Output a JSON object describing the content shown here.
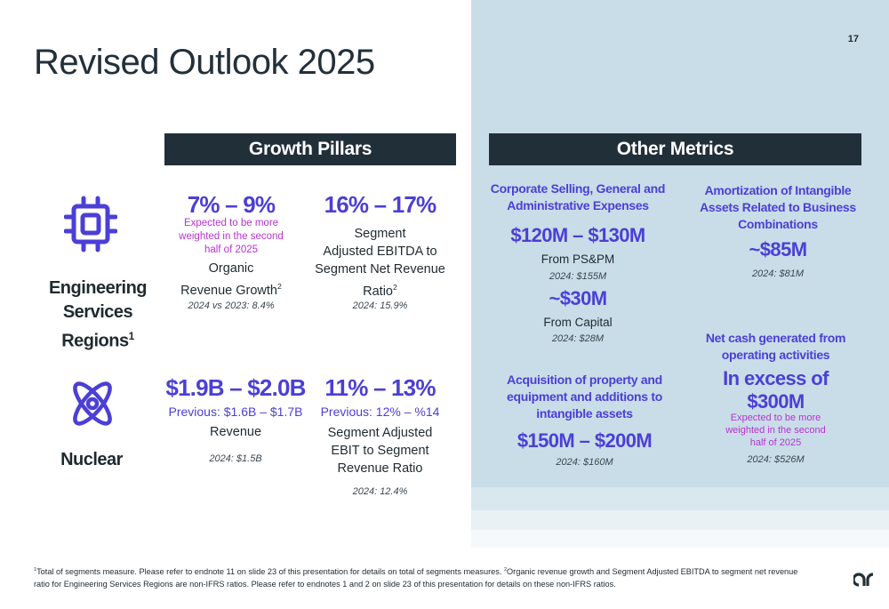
{
  "page_number": "17",
  "title": "Revised Outlook 2025",
  "headers": {
    "left": "Growth Pillars",
    "right": "Other Metrics"
  },
  "rows": {
    "engineering": {
      "label_line1": "Engineering",
      "label_line2": "Services Regions",
      "label_sup": "1",
      "icon": "chip-icon"
    },
    "nuclear": {
      "label": "Nuclear",
      "icon": "atom-icon"
    }
  },
  "growth": {
    "organic": {
      "value": "7% – 9%",
      "note_line1": "Expected to be more",
      "note_line2": "weighted in the second",
      "note_line3": "half of 2025",
      "label_line1": "Organic",
      "label_line2": "Revenue Growth",
      "label_sup": "2",
      "prior": "2024 vs 2023: 8.4%"
    },
    "ebitda": {
      "value": "16% – 17%",
      "label_line1": "Segment",
      "label_line2": "Adjusted EBITDA to",
      "label_line3": "Segment Net Revenue",
      "label_line4": "Ratio",
      "label_sup": "2",
      "prior": "2024: 15.9%"
    },
    "revenue": {
      "value": "$1.9B – $2.0B",
      "previous": "Previous: $1.6B – $1.7B",
      "label": "Revenue",
      "prior": "2024: $1.5B"
    },
    "ebit": {
      "value": "11% – 13%",
      "previous": "Previous: 12% – %14",
      "label_line1": "Segment Adjusted",
      "label_line2": "EBIT to Segment",
      "label_line3": "Revenue Ratio",
      "prior": "2024: 12.4%"
    }
  },
  "metrics": {
    "sga": {
      "head_line1": "Corporate Selling, General and",
      "head_line2": "Administrative Expenses",
      "value1": "$120M – $130M",
      "label1": "From PS&PM",
      "prior1": "2024: $155M",
      "value2": "~$30M",
      "label2": "From Capital",
      "prior2": "2024: $28M"
    },
    "amortization": {
      "head_line1": "Amortization of Intangible",
      "head_line2": "Assets Related to Business",
      "head_line3": "Combinations",
      "value": "~$85M",
      "prior": "2024: $81M"
    },
    "capex": {
      "head_line1": "Acquisition of property and",
      "head_line2": "equipment and additions to",
      "head_line3": "intangible assets",
      "value": "$150M – $200M",
      "prior": "2024: $160M"
    },
    "netcash": {
      "head_line1": "Net cash generated from",
      "head_line2": "operating activities",
      "value_line1": "In excess of",
      "value_line2": "$300M",
      "note_line1": "Expected to be more",
      "note_line2": "weighted in the second",
      "note_line3": "half of 2025",
      "prior": "2024: $526M"
    }
  },
  "footnote": {
    "sup1": "1",
    "text1": "Total of segments measure. Please refer to endnote 11 on slide 23 of this presentation for details on total of segments measures. ",
    "sup2": "2",
    "text2": "Organic revenue growth and Segment Adjusted EBITDA to segment net revenue",
    "line2": "ratio for Engineering Services Regions are non-IFRS ratios. Please refer to endnotes 1 and 2 on slide 23 of this presentation for details on these non-IFRS ratios."
  },
  "colors": {
    "accent": "#4b3fd6",
    "highlight": "#b732d1",
    "header_bg": "#212f39",
    "panel_bg": "#c9dde8"
  },
  "logo": "company-logo"
}
